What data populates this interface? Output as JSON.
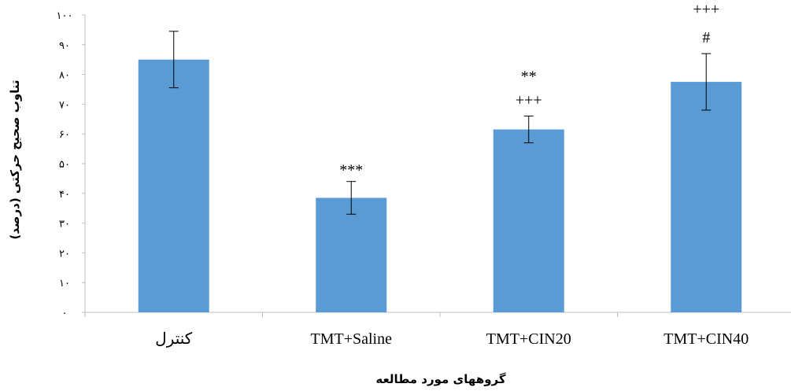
{
  "chart_data": {
    "type": "bar",
    "categories": [
      "کنترل",
      "TMT+Saline",
      "TMT+CIN20",
      "TMT+CIN40"
    ],
    "values": [
      85,
      38.5,
      61.5,
      77.5
    ],
    "error": [
      9.5,
      5.5,
      4.5,
      9.5
    ],
    "annotations": [
      [],
      [
        "***"
      ],
      [
        "+++",
        "**"
      ],
      [
        "#",
        "+++"
      ]
    ],
    "ylim": [
      0,
      100
    ],
    "yticks": [
      0,
      10,
      20,
      30,
      40,
      50,
      60,
      70,
      80,
      90,
      100
    ],
    "ytick_labels": [
      "۰",
      "۱۰",
      "۲۰",
      "۳۰",
      "۴۰",
      "۵۰",
      "۶۰",
      "۷۰",
      "۸۰",
      "۹۰",
      "۱۰۰"
    ],
    "xlabel": "گروههای مورد مطالعه",
    "ylabel": "تناوب صحیح حرکتی (درصد)",
    "grid": false,
    "bar_color": "#5B9BD5"
  }
}
